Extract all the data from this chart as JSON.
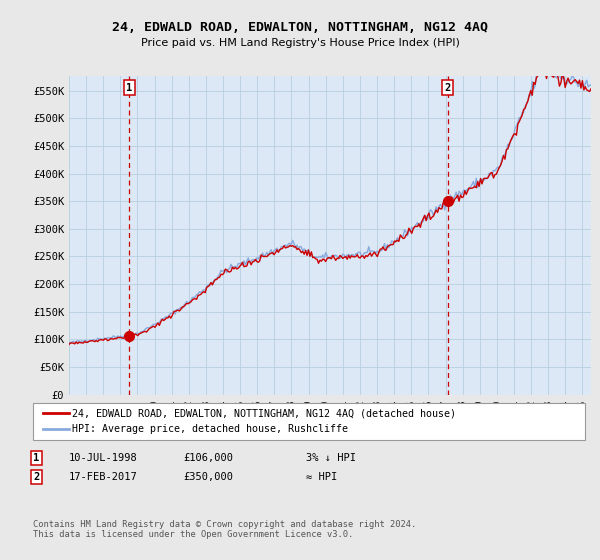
{
  "title_line1": "24, EDWALD ROAD, EDWALTON, NOTTINGHAM, NG12 4AQ",
  "subtitle": "Price paid vs. HM Land Registry's House Price Index (HPI)",
  "ylim": [
    0,
    577000
  ],
  "yticks": [
    0,
    50000,
    100000,
    150000,
    200000,
    250000,
    300000,
    350000,
    400000,
    450000,
    500000,
    550000
  ],
  "ytick_labels": [
    "£0",
    "£50K",
    "£100K",
    "£150K",
    "£200K",
    "£250K",
    "£300K",
    "£350K",
    "£400K",
    "£450K",
    "£500K",
    "£550K"
  ],
  "background_color": "#e8e8e8",
  "plot_bg_color": "#dce8f5",
  "grid_color": "#b8cfe0",
  "red_color": "#cc0000",
  "blue_color": "#88aadd",
  "legend_label_red": "24, EDWALD ROAD, EDWALTON, NOTTINGHAM, NG12 4AQ (detached house)",
  "legend_label_blue": "HPI: Average price, detached house, Rushcliffe",
  "marker1_date": "10-JUL-1998",
  "marker1_price": "£106,000",
  "marker1_hpi": "3% ↓ HPI",
  "marker1_year": 1998.53,
  "marker1_value": 106000,
  "marker2_date": "17-FEB-2017",
  "marker2_price": "£350,000",
  "marker2_hpi": "≈ HPI",
  "marker2_year": 2017.12,
  "marker2_value": 350000,
  "footer": "Contains HM Land Registry data © Crown copyright and database right 2024.\nThis data is licensed under the Open Government Licence v3.0.",
  "xmin": 1995.0,
  "xmax": 2025.5
}
